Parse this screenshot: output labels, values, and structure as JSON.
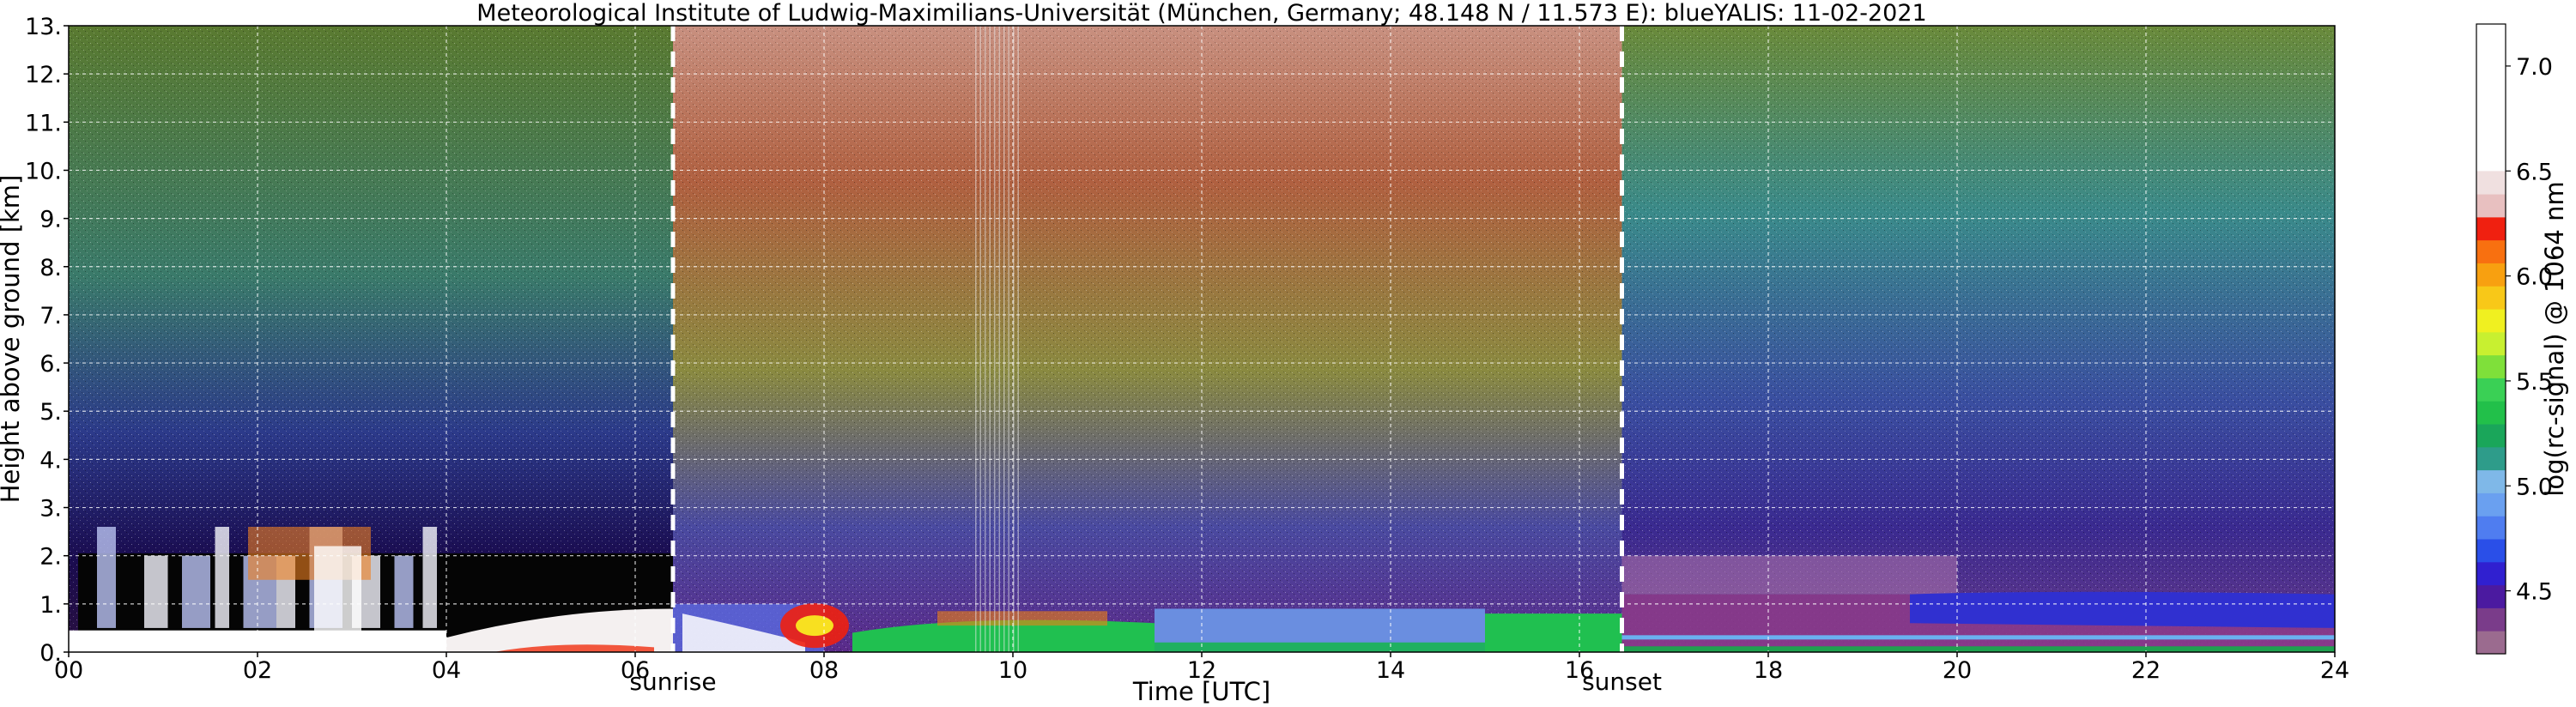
{
  "chart_data": {
    "type": "heatmap",
    "title": "Meteorological Institute of Ludwig-Maximilians-Universität (München, Germany; 48.148 N / 11.573 E):     blueYALIS: 11-02-2021",
    "xlabel": "Time [UTC]",
    "ylabel": "Height above ground [km]",
    "colorbar_label": "log(rc-signal) @ 1064 nm",
    "xlim": [
      0,
      24
    ],
    "ylim": [
      0,
      13
    ],
    "x_ticks": [
      "00",
      "02",
      "04",
      "06",
      "08",
      "10",
      "12",
      "14",
      "16",
      "18",
      "20",
      "22",
      "24"
    ],
    "x_tick_values": [
      0,
      2,
      4,
      6,
      8,
      10,
      12,
      14,
      16,
      18,
      20,
      22,
      24
    ],
    "y_ticks": [
      "0.",
      "1.",
      "2.",
      "3.",
      "4.",
      "5.",
      "6.",
      "7.",
      "8.",
      "9.",
      "10.",
      "11.",
      "12.",
      "13."
    ],
    "y_tick_values": [
      0,
      1,
      2,
      3,
      4,
      5,
      6,
      7,
      8,
      9,
      10,
      11,
      12,
      13
    ],
    "colorbar_ticks": [
      "4.5",
      "5.0",
      "5.5",
      "6.0",
      "6.5",
      "7.0"
    ],
    "colorbar_tick_values": [
      4.5,
      5.0,
      5.5,
      6.0,
      6.5,
      7.0
    ],
    "colorbar_range": [
      4.2,
      7.2
    ],
    "grid": true,
    "annotations": [
      {
        "label": "sunrise",
        "x": 6.4
      },
      {
        "label": "sunset",
        "x": 16.45
      }
    ],
    "colormap": [
      "#9b6b8f",
      "#7a3c8a",
      "#4b1aa0",
      "#3020d0",
      "#2a4fe8",
      "#4f7df0",
      "#6aa0f0",
      "#7fb8e8",
      "#2e9c8a",
      "#1aa65a",
      "#22c04a",
      "#3ad055",
      "#7fe03a",
      "#c8f030",
      "#f0f020",
      "#f8c818",
      "#f8a010",
      "#f87010",
      "#f02010",
      "#e8c0c0",
      "#f0e0e0",
      "#ffffff"
    ],
    "colors": {
      "grid": "#ffffff",
      "marker_line": "#ffffff",
      "frame": "#000000"
    }
  }
}
